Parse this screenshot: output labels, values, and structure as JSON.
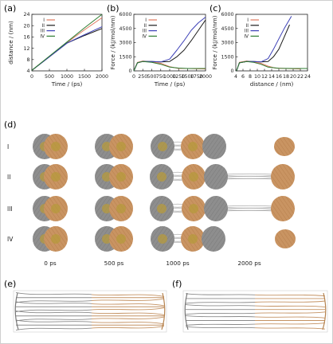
{
  "panel_labels": {
    "a": "(a)",
    "b": "(b)",
    "c": "(c)",
    "d": "(d)",
    "e": "(e)",
    "f": "(f)"
  },
  "legend_items": [
    {
      "label": "I",
      "color": "#e07a5f"
    },
    {
      "label": "II",
      "color": "#1a1a1a"
    },
    {
      "label": "III",
      "color": "#3b3fb6"
    },
    {
      "label": "IV",
      "color": "#2e7d32"
    }
  ],
  "rows": [
    "I",
    "II",
    "III",
    "IV"
  ],
  "times": [
    "0 ps",
    "500 ps",
    "1000 ps",
    "2000 ps"
  ],
  "colors": {
    "gray": "#8e8e8e",
    "orange": "#c99462",
    "core": "#b59a3c"
  },
  "chart_data": [
    {
      "type": "line",
      "xlabel": "Time / (ps)",
      "ylabel": "distance / (nm)",
      "xlim": [
        0,
        2000
      ],
      "ylim": [
        4,
        24
      ],
      "xticks": [
        "0",
        "500",
        "1000",
        "1500",
        "2000"
      ],
      "yticks": [
        "4",
        "8",
        "12",
        "16",
        "20",
        "24"
      ],
      "series": [
        {
          "name": "I",
          "x": [
            0,
            500,
            1000,
            1500,
            2000
          ],
          "y": [
            4.2,
            9.1,
            14.0,
            18.5,
            22.8
          ]
        },
        {
          "name": "II",
          "x": [
            0,
            500,
            1000,
            1500,
            2000
          ],
          "y": [
            4.2,
            9.0,
            13.8,
            16.5,
            19.0
          ]
        },
        {
          "name": "III",
          "x": [
            0,
            500,
            1000,
            1500,
            2000
          ],
          "y": [
            4.2,
            9.0,
            13.8,
            16.8,
            19.6
          ]
        },
        {
          "name": "IV",
          "x": [
            0,
            500,
            1000,
            1500,
            2000
          ],
          "y": [
            4.2,
            9.2,
            14.2,
            19.2,
            24.0
          ]
        }
      ]
    },
    {
      "type": "line",
      "xlabel": "Time / (ps)",
      "ylabel": "Force / (kJ/mol/nm)",
      "xlim": [
        0,
        2000
      ],
      "ylim": [
        0,
        6000
      ],
      "xticks": [
        "0",
        "250",
        "500",
        "750",
        "1000",
        "1250",
        "1500",
        "1750",
        "2000"
      ],
      "yticks": [
        "0",
        "1500",
        "3000",
        "4500",
        "6000"
      ],
      "series": [
        {
          "name": "I",
          "x": [
            0,
            100,
            250,
            500,
            750,
            1000,
            1250,
            1500,
            1750,
            2000
          ],
          "y": [
            0,
            900,
            1050,
            950,
            800,
            450,
            250,
            250,
            220,
            200
          ]
        },
        {
          "name": "II",
          "x": [
            0,
            100,
            250,
            500,
            750,
            1000,
            1200,
            1400,
            1600,
            1800,
            2000
          ],
          "y": [
            0,
            850,
            1000,
            1000,
            950,
            1000,
            1500,
            2200,
            3200,
            4300,
            5400
          ]
        },
        {
          "name": "III",
          "x": [
            0,
            100,
            250,
            500,
            750,
            1000,
            1200,
            1400,
            1600,
            1800,
            2000
          ],
          "y": [
            0,
            850,
            1000,
            1000,
            950,
            1250,
            2200,
            3200,
            4300,
            5100,
            5700
          ]
        },
        {
          "name": "IV",
          "x": [
            0,
            100,
            250,
            500,
            750,
            1000,
            1250,
            1500,
            1750,
            2000
          ],
          "y": [
            0,
            850,
            1000,
            900,
            700,
            400,
            300,
            250,
            250,
            250
          ]
        }
      ]
    },
    {
      "type": "line",
      "xlabel": "distance / (nm)",
      "ylabel": "Force / (kJ/mol/nm)",
      "xlim": [
        4,
        24
      ],
      "ylim": [
        0,
        6000
      ],
      "xticks": [
        "4",
        "6",
        "8",
        "10",
        "12",
        "14",
        "16",
        "18",
        "20",
        "22",
        "24"
      ],
      "yticks": [
        "0",
        "1500",
        "3000",
        "4500",
        "6000"
      ],
      "series": [
        {
          "name": "I",
          "x": [
            4.2,
            5,
            7,
            9,
            11,
            13,
            15,
            18,
            22
          ],
          "y": [
            0,
            900,
            1050,
            950,
            800,
            500,
            300,
            250,
            200
          ]
        },
        {
          "name": "II",
          "x": [
            4.2,
            5,
            7,
            9,
            11,
            13,
            14.5,
            16,
            17.5,
            19
          ],
          "y": [
            0,
            850,
            1000,
            1000,
            950,
            1000,
            1500,
            2300,
            3600,
            4900
          ]
        },
        {
          "name": "III",
          "x": [
            4.2,
            5,
            7,
            9,
            11,
            13,
            14.5,
            16,
            17.5,
            19.5
          ],
          "y": [
            0,
            850,
            1000,
            1000,
            950,
            1300,
            2300,
            3400,
            4500,
            5800
          ]
        },
        {
          "name": "IV",
          "x": [
            4.2,
            5,
            7,
            9,
            11,
            13,
            16,
            20,
            24
          ],
          "y": [
            0,
            850,
            1000,
            900,
            700,
            400,
            280,
            250,
            250
          ]
        }
      ]
    }
  ]
}
